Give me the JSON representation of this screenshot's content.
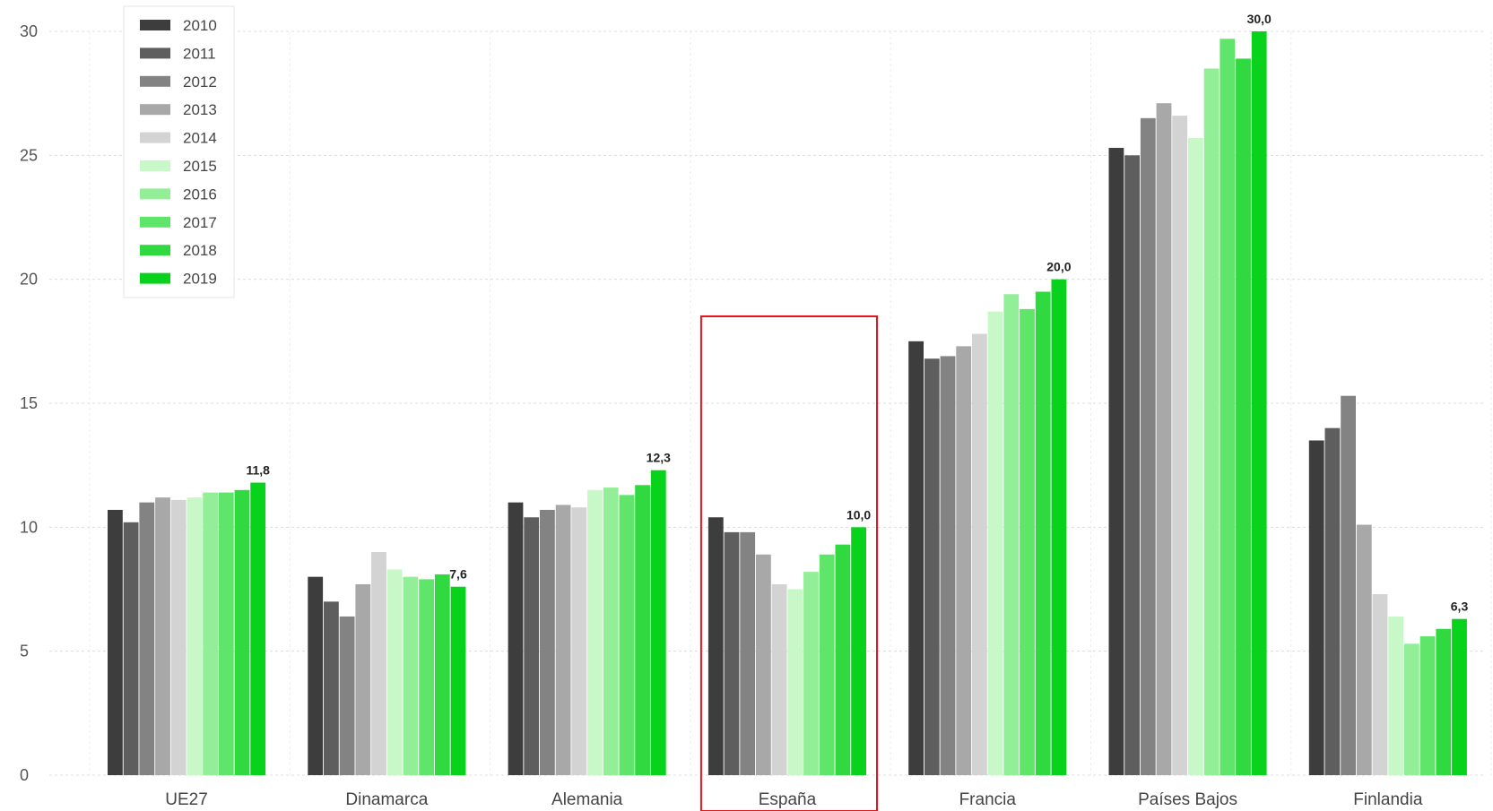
{
  "chart_data": {
    "type": "bar",
    "title": "",
    "xlabel": "",
    "ylabel": "",
    "ylim": [
      0,
      30
    ],
    "yticks": [
      "0",
      "5",
      "10",
      "15",
      "20",
      "25",
      "30"
    ],
    "grid": true,
    "legend_position": "top-left",
    "categories": [
      "UE27",
      "Dinamarca",
      "Alemania",
      "España",
      "Francia",
      "Países Bajos",
      "Finlandia"
    ],
    "series": [
      {
        "name": "2010",
        "color": "#3d3d3d",
        "values": [
          10.7,
          8.0,
          11.0,
          10.4,
          17.5,
          25.3,
          13.5
        ]
      },
      {
        "name": "2011",
        "color": "#5e5e5e",
        "values": [
          10.2,
          7.0,
          10.4,
          9.8,
          16.8,
          25.0,
          14.0
        ]
      },
      {
        "name": "2012",
        "color": "#838383",
        "values": [
          11.0,
          6.4,
          10.7,
          9.8,
          16.9,
          26.5,
          15.3
        ]
      },
      {
        "name": "2013",
        "color": "#a8a8a8",
        "values": [
          11.2,
          7.7,
          10.9,
          8.9,
          17.3,
          27.1,
          10.1
        ]
      },
      {
        "name": "2014",
        "color": "#d3d3d3",
        "values": [
          11.1,
          9.0,
          10.8,
          7.7,
          17.8,
          26.6,
          7.3
        ]
      },
      {
        "name": "2015",
        "color": "#c8f7c8",
        "values": [
          11.2,
          8.3,
          11.5,
          7.5,
          18.7,
          25.7,
          6.4
        ]
      },
      {
        "name": "2016",
        "color": "#93ee98",
        "values": [
          11.4,
          8.0,
          11.6,
          8.2,
          19.4,
          28.5,
          5.3
        ]
      },
      {
        "name": "2017",
        "color": "#5fe56a",
        "values": [
          11.4,
          7.9,
          11.3,
          8.9,
          18.8,
          29.7,
          5.6
        ]
      },
      {
        "name": "2018",
        "color": "#2fd93f",
        "values": [
          11.5,
          8.1,
          11.7,
          9.3,
          19.5,
          28.9,
          5.9
        ]
      },
      {
        "name": "2019",
        "color": "#09d21c",
        "values": [
          11.8,
          7.6,
          12.3,
          10.0,
          20.0,
          30.0,
          6.3
        ]
      }
    ],
    "data_labels": [
      "11,8",
      "7,6",
      "12,3",
      "10,0",
      "20,0",
      "30,0",
      "6,3"
    ],
    "highlight_category": "España",
    "highlight_color": "#e8141c"
  }
}
